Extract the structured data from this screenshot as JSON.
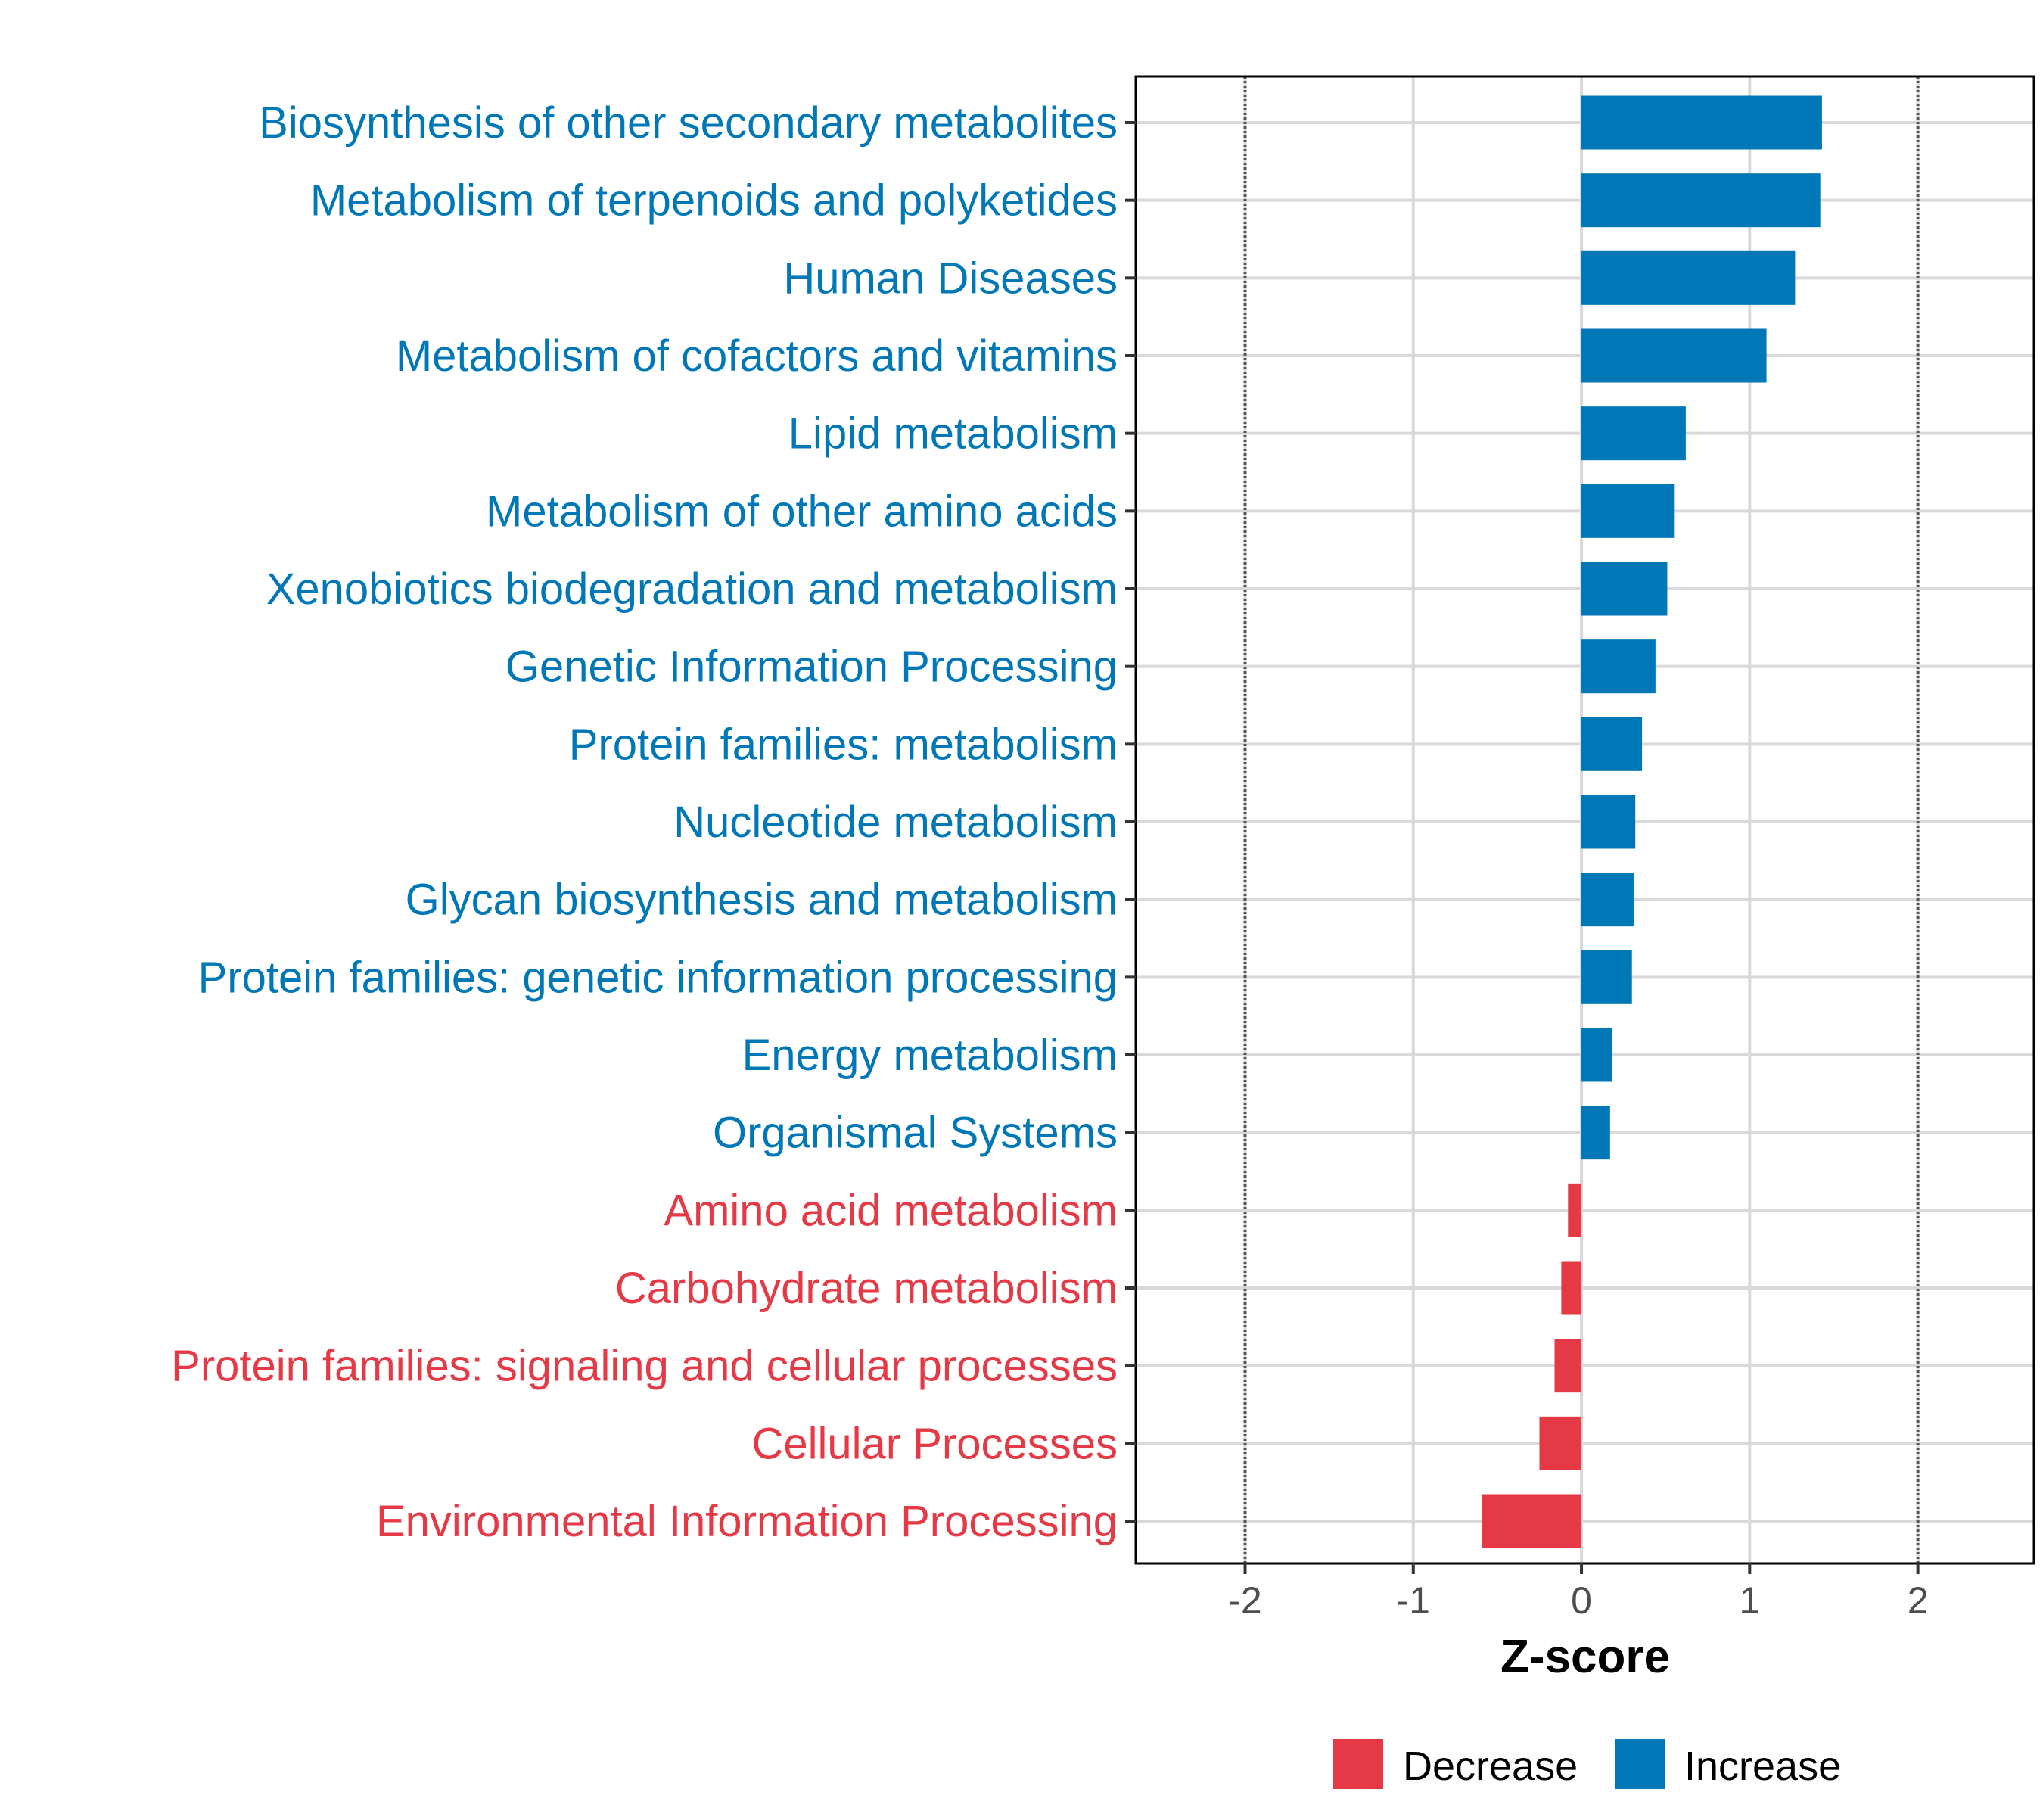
{
  "colors": {
    "Decrease": "#E63946",
    "Increase": "#0077B6",
    "grid": "#D9D9D9",
    "refline": "#555555"
  },
  "chart_data": {
    "type": "bar",
    "orientation": "horizontal",
    "title": "",
    "xlabel": "Z-score",
    "ylabel": "",
    "xlim": [
      -2.65,
      2.69
    ],
    "xticks": [
      -2,
      -1,
      0,
      1,
      2
    ],
    "xtick_labels": [
      "-2",
      "-1",
      "0",
      "1",
      "2"
    ],
    "reference_lines": [
      -2,
      2
    ],
    "grid": true,
    "legend": {
      "placement": "bottom",
      "entries": [
        "Decrease",
        "Increase"
      ]
    },
    "categories": [
      "Biosynthesis of other secondary metabolites",
      "Metabolism of terpenoids and polyketides",
      "Human Diseases",
      "Metabolism of cofactors and vitamins",
      "Lipid metabolism",
      "Metabolism of other amino acids",
      "Xenobiotics biodegradation and metabolism",
      "Genetic Information Processing",
      "Protein families: metabolism",
      "Nucleotide metabolism",
      "Glycan biosynthesis and metabolism",
      "Protein families: genetic information processing",
      "Energy metabolism",
      "Organismal Systems",
      "Amino acid metabolism",
      "Carbohydrate metabolism",
      "Protein families: signaling and cellular processes",
      "Cellular Processes",
      "Environmental Information Processing"
    ],
    "values": [
      1.43,
      1.42,
      1.27,
      1.1,
      0.62,
      0.55,
      0.51,
      0.44,
      0.36,
      0.32,
      0.31,
      0.3,
      0.18,
      0.17,
      -0.08,
      -0.12,
      -0.16,
      -0.25,
      -0.59
    ],
    "groups": [
      "Increase",
      "Increase",
      "Increase",
      "Increase",
      "Increase",
      "Increase",
      "Increase",
      "Increase",
      "Increase",
      "Increase",
      "Increase",
      "Increase",
      "Increase",
      "Increase",
      "Decrease",
      "Decrease",
      "Decrease",
      "Decrease",
      "Decrease"
    ]
  }
}
